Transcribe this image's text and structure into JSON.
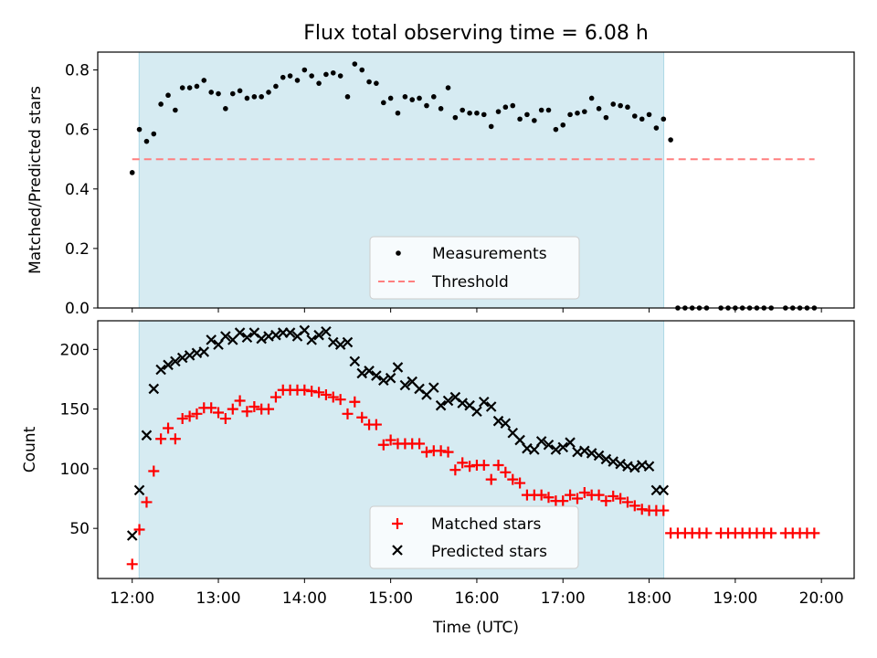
{
  "chart_data": [
    {
      "type": "scatter",
      "title": "Flux total observing time = 6.08 h",
      "xlabel": "",
      "ylabel": "Matched/Predicted stars",
      "xlim": [
        11.6,
        20.38
      ],
      "ylim": [
        0.0,
        0.86
      ],
      "yticks": [
        0.0,
        0.2,
        0.4,
        0.6,
        0.8
      ],
      "ytick_labels": [
        "0.0",
        "0.2",
        "0.4",
        "0.6",
        "0.8"
      ],
      "shaded_region": {
        "x": [
          12.08,
          18.17
        ],
        "color": "#add8e6"
      },
      "legend": {
        "placement": "lower center",
        "entries": [
          "Measurements",
          "Threshold"
        ]
      },
      "series": [
        {
          "name": "Measurements",
          "marker": "dot",
          "color": "#000000",
          "x": [
            12.0,
            12.083,
            12.167,
            12.25,
            12.333,
            12.417,
            12.5,
            12.583,
            12.667,
            12.75,
            12.833,
            12.917,
            13.0,
            13.083,
            13.167,
            13.25,
            13.333,
            13.417,
            13.5,
            13.583,
            13.667,
            13.75,
            13.833,
            13.917,
            14.0,
            14.083,
            14.167,
            14.25,
            14.333,
            14.417,
            14.5,
            14.583,
            14.667,
            14.75,
            14.833,
            14.917,
            15.0,
            15.083,
            15.167,
            15.25,
            15.333,
            15.417,
            15.5,
            15.583,
            15.667,
            15.75,
            15.833,
            15.917,
            16.0,
            16.083,
            16.167,
            16.25,
            16.333,
            16.417,
            16.5,
            16.583,
            16.667,
            16.75,
            16.833,
            16.917,
            17.0,
            17.083,
            17.167,
            17.25,
            17.333,
            17.417,
            17.5,
            17.583,
            17.667,
            17.75,
            17.833,
            17.917,
            18.0,
            18.083,
            18.167,
            18.25,
            18.333,
            18.417,
            18.5,
            18.583,
            18.667,
            18.833,
            18.917,
            19.0,
            19.083,
            19.167,
            19.25,
            19.333,
            19.417,
            19.583,
            19.667,
            19.75,
            19.833,
            19.917
          ],
          "y": [
            0.455,
            0.6,
            0.56,
            0.585,
            0.685,
            0.715,
            0.665,
            0.74,
            0.74,
            0.745,
            0.765,
            0.725,
            0.72,
            0.67,
            0.72,
            0.73,
            0.705,
            0.71,
            0.71,
            0.725,
            0.745,
            0.775,
            0.78,
            0.765,
            0.8,
            0.78,
            0.755,
            0.785,
            0.79,
            0.78,
            0.71,
            0.82,
            0.8,
            0.76,
            0.755,
            0.69,
            0.705,
            0.655,
            0.71,
            0.7,
            0.705,
            0.68,
            0.71,
            0.67,
            0.74,
            0.64,
            0.665,
            0.655,
            0.655,
            0.65,
            0.61,
            0.66,
            0.675,
            0.68,
            0.635,
            0.65,
            0.63,
            0.665,
            0.665,
            0.6,
            0.615,
            0.65,
            0.655,
            0.66,
            0.705,
            0.67,
            0.64,
            0.685,
            0.68,
            0.675,
            0.645,
            0.635,
            0.65,
            0.605,
            0.635,
            0.565,
            0.0,
            0.0,
            0.0,
            0.0,
            0.0,
            0.0,
            0.0,
            0.0,
            0.0,
            0.0,
            0.0,
            0.0,
            0.0,
            0.0,
            0.0,
            0.0,
            0.0,
            0.0
          ]
        },
        {
          "name": "Threshold",
          "marker": "dashed-line",
          "color": "#ff7f7f",
          "x": [
            12.0,
            19.92
          ],
          "y": [
            0.5,
            0.5
          ]
        }
      ]
    },
    {
      "type": "scatter",
      "title": "",
      "xlabel": "Time (UTC)",
      "ylabel": "Count",
      "xlim": [
        11.6,
        20.38
      ],
      "ylim": [
        8,
        224
      ],
      "yticks": [
        50,
        100,
        150,
        200
      ],
      "ytick_labels": [
        "50",
        "100",
        "150",
        "200"
      ],
      "xticks": [
        12,
        13,
        14,
        15,
        16,
        17,
        18,
        19,
        20
      ],
      "xtick_labels": [
        "12:00",
        "13:00",
        "14:00",
        "15:00",
        "16:00",
        "17:00",
        "18:00",
        "19:00",
        "20:00"
      ],
      "shaded_region": {
        "x": [
          12.08,
          18.17
        ],
        "color": "#add8e6"
      },
      "legend": {
        "placement": "lower center",
        "entries": [
          "Matched stars",
          "Predicted stars"
        ]
      },
      "series": [
        {
          "name": "Matched stars",
          "marker": "plus",
          "color": "#ff0000",
          "x": [
            12.0,
            12.083,
            12.167,
            12.25,
            12.333,
            12.417,
            12.5,
            12.583,
            12.667,
            12.75,
            12.833,
            12.917,
            13.0,
            13.083,
            13.167,
            13.25,
            13.333,
            13.417,
            13.5,
            13.583,
            13.667,
            13.75,
            13.833,
            13.917,
            14.0,
            14.083,
            14.167,
            14.25,
            14.333,
            14.417,
            14.5,
            14.583,
            14.667,
            14.75,
            14.833,
            14.917,
            15.0,
            15.083,
            15.167,
            15.25,
            15.333,
            15.417,
            15.5,
            15.583,
            15.667,
            15.75,
            15.833,
            15.917,
            16.0,
            16.083,
            16.167,
            16.25,
            16.333,
            16.417,
            16.5,
            16.583,
            16.667,
            16.75,
            16.833,
            16.917,
            17.0,
            17.083,
            17.167,
            17.25,
            17.333,
            17.417,
            17.5,
            17.583,
            17.667,
            17.75,
            17.833,
            17.917,
            18.0,
            18.083,
            18.167,
            18.25,
            18.333,
            18.417,
            18.5,
            18.583,
            18.667,
            18.833,
            18.917,
            19.0,
            19.083,
            19.167,
            19.25,
            19.333,
            19.417,
            19.583,
            19.667,
            19.75,
            19.833,
            19.917
          ],
          "y": [
            20,
            49,
            72,
            98,
            125,
            134,
            125,
            142,
            144,
            146,
            151,
            151,
            147,
            142,
            150,
            157,
            148,
            152,
            150,
            150,
            160,
            166,
            166,
            166,
            166,
            165,
            164,
            162,
            160,
            158,
            146,
            156,
            143,
            137,
            137,
            120,
            124,
            121,
            121,
            121,
            121,
            114,
            115,
            115,
            114,
            99,
            105,
            102,
            103,
            103,
            91,
            103,
            97,
            91,
            88,
            78,
            78,
            78,
            76,
            73,
            73,
            78,
            75,
            80,
            78,
            78,
            73,
            77,
            75,
            72,
            69,
            66,
            65,
            65,
            65,
            46,
            46,
            46,
            46,
            46,
            46,
            46,
            46,
            46,
            46,
            46,
            46,
            46,
            46,
            46,
            46,
            46,
            46,
            46
          ]
        },
        {
          "name": "Predicted stars",
          "marker": "x",
          "color": "#000000",
          "x": [
            12.0,
            12.083,
            12.167,
            12.25,
            12.333,
            12.417,
            12.5,
            12.583,
            12.667,
            12.75,
            12.833,
            12.917,
            13.0,
            13.083,
            13.167,
            13.25,
            13.333,
            13.417,
            13.5,
            13.583,
            13.667,
            13.75,
            13.833,
            13.917,
            14.0,
            14.083,
            14.167,
            14.25,
            14.333,
            14.417,
            14.5,
            14.583,
            14.667,
            14.75,
            14.833,
            14.917,
            15.0,
            15.083,
            15.167,
            15.25,
            15.333,
            15.417,
            15.5,
            15.583,
            15.667,
            15.75,
            15.833,
            15.917,
            16.0,
            16.083,
            16.167,
            16.25,
            16.333,
            16.417,
            16.5,
            16.583,
            16.667,
            16.75,
            16.833,
            16.917,
            17.0,
            17.083,
            17.167,
            17.25,
            17.333,
            17.417,
            17.5,
            17.583,
            17.667,
            17.75,
            17.833,
            17.917,
            18.0,
            18.083,
            18.167
          ],
          "y": [
            44,
            82,
            128,
            167,
            183,
            187,
            190,
            193,
            195,
            197,
            198,
            208,
            204,
            211,
            208,
            214,
            210,
            214,
            209,
            211,
            212,
            214,
            214,
            211,
            216,
            208,
            212,
            215,
            206,
            204,
            206,
            190,
            180,
            182,
            178,
            174,
            176,
            185,
            170,
            173,
            167,
            162,
            168,
            153,
            157,
            160,
            155,
            153,
            148,
            156,
            152,
            140,
            138,
            130,
            124,
            117,
            116,
            123,
            120,
            116,
            118,
            122,
            114,
            115,
            113,
            111,
            108,
            106,
            104,
            102,
            101,
            103,
            102,
            82,
            82
          ]
        }
      ]
    }
  ]
}
